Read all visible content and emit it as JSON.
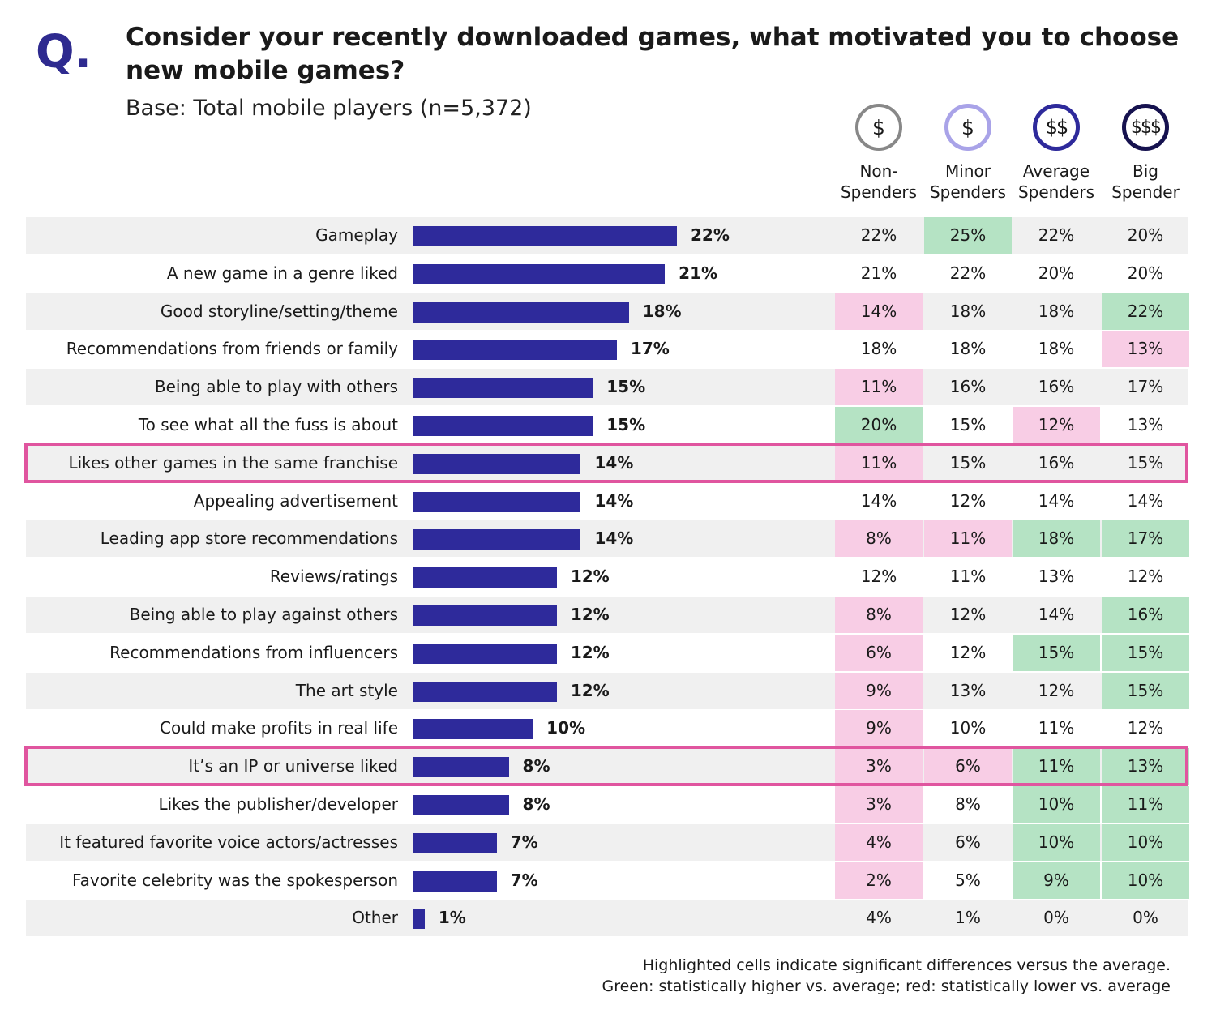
{
  "header": {
    "q": "Q.",
    "title": "Consider your recently downloaded games, what motivated you to choose new mobile games?",
    "base": "Base: Total mobile players (n=5,372)"
  },
  "columns": [
    {
      "icon": "dollar-crossed-icon",
      "symbol": "$",
      "name": "Non- Spenders",
      "color": "#888888"
    },
    {
      "icon": "dollar-icon",
      "symbol": "$",
      "name": "Minor Spenders",
      "color": "#a9a3e8"
    },
    {
      "icon": "double-dollar-icon",
      "symbol": "$$",
      "name": "Average Spenders",
      "color": "#2e2a9b"
    },
    {
      "icon": "triple-dollar-icon",
      "symbol": "$$$",
      "name": "Big Spender",
      "color": "#16124f"
    }
  ],
  "colors": {
    "bar": "#2e2a9b",
    "higher": "#b5e3c4",
    "lower": "#f8cde5",
    "highlight": "#e0559f"
  },
  "chart_data": {
    "type": "bar",
    "orientation": "horizontal",
    "categories": [
      "Gameplay",
      "A new game in a genre liked",
      "Good storyline/setting/theme",
      "Recommendations from friends or family",
      "Being able to play with others",
      "To see what all the fuss is about",
      "Likes other games in the same franchise",
      "Appealing advertisement",
      "Leading app store recommendations",
      "Reviews/ratings",
      "Being able to play against others",
      "Recommendations from influencers",
      "The art style",
      "Could make profits in real life",
      "It’s an IP or universe liked",
      "Likes the publisher/developer",
      "It featured favorite voice actors/actresses",
      "Favorite celebrity was the spokesperson",
      "Other"
    ],
    "values": [
      22,
      21,
      18,
      17,
      15,
      15,
      14,
      14,
      14,
      12,
      12,
      12,
      12,
      10,
      8,
      8,
      7,
      7,
      1
    ],
    "value_labels": [
      "22%",
      "21%",
      "18%",
      "17%",
      "15%",
      "15%",
      "14%",
      "14%",
      "14%",
      "12%",
      "12%",
      "12%",
      "12%",
      "10%",
      "8%",
      "8%",
      "7%",
      "7%",
      "1%"
    ],
    "highlighted_rows": [
      "Likes other games in the same franchise",
      "It’s an IP or universe liked"
    ],
    "table": [
      [
        "22%",
        "25%",
        "22%",
        "20%"
      ],
      [
        "21%",
        "22%",
        "20%",
        "20%"
      ],
      [
        "14%",
        "18%",
        "18%",
        "22%"
      ],
      [
        "18%",
        "18%",
        "18%",
        "13%"
      ],
      [
        "11%",
        "16%",
        "16%",
        "17%"
      ],
      [
        "20%",
        "15%",
        "12%",
        "13%"
      ],
      [
        "11%",
        "15%",
        "16%",
        "15%"
      ],
      [
        "14%",
        "12%",
        "14%",
        "14%"
      ],
      [
        "8%",
        "11%",
        "18%",
        "17%"
      ],
      [
        "12%",
        "11%",
        "13%",
        "12%"
      ],
      [
        "8%",
        "12%",
        "14%",
        "16%"
      ],
      [
        "6%",
        "12%",
        "15%",
        "15%"
      ],
      [
        "9%",
        "13%",
        "12%",
        "15%"
      ],
      [
        "9%",
        "10%",
        "11%",
        "12%"
      ],
      [
        "3%",
        "6%",
        "11%",
        "13%"
      ],
      [
        "3%",
        "8%",
        "10%",
        "11%"
      ],
      [
        "4%",
        "6%",
        "10%",
        "10%"
      ],
      [
        "2%",
        "5%",
        "9%",
        "10%"
      ],
      [
        "4%",
        "1%",
        "0%",
        "0%"
      ]
    ],
    "significance": [
      [
        "",
        "higher",
        "",
        ""
      ],
      [
        "",
        "",
        "",
        ""
      ],
      [
        "lower",
        "",
        "",
        "higher"
      ],
      [
        "",
        "",
        "",
        "lower"
      ],
      [
        "lower",
        "",
        "",
        ""
      ],
      [
        "higher",
        "",
        "lower",
        ""
      ],
      [
        "lower",
        "",
        "",
        ""
      ],
      [
        "",
        "",
        "",
        ""
      ],
      [
        "lower",
        "lower",
        "higher",
        "higher"
      ],
      [
        "",
        "",
        "",
        ""
      ],
      [
        "lower",
        "",
        "",
        "higher"
      ],
      [
        "lower",
        "",
        "higher",
        "higher"
      ],
      [
        "lower",
        "",
        "",
        "higher"
      ],
      [
        "lower",
        "",
        "",
        ""
      ],
      [
        "lower",
        "lower",
        "higher",
        "higher"
      ],
      [
        "lower",
        "",
        "higher",
        "higher"
      ],
      [
        "lower",
        "",
        "higher",
        "higher"
      ],
      [
        "lower",
        "",
        "higher",
        "higher"
      ],
      [
        "",
        "",
        "",
        ""
      ]
    ]
  },
  "footnote": {
    "line1": "Highlighted cells indicate significant differences versus the average.",
    "line2": "Green: statistically higher vs. average; red: statistically lower vs. average"
  }
}
